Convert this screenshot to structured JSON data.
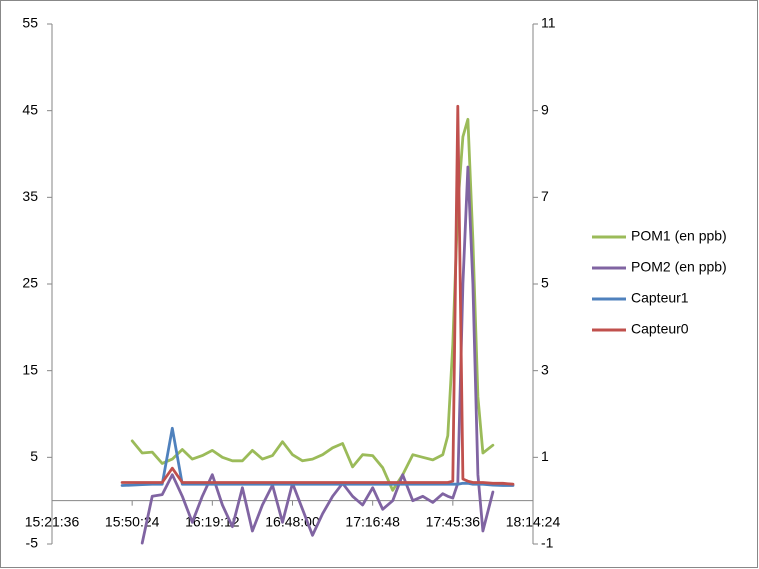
{
  "chart_data": {
    "type": "line",
    "x": [
      "15:46:48",
      "15:50:24",
      "15:54:00",
      "15:57:36",
      "16:01:12",
      "16:04:48",
      "16:08:24",
      "16:12:00",
      "16:15:36",
      "16:19:12",
      "16:22:48",
      "16:26:24",
      "16:30:00",
      "16:33:36",
      "16:37:12",
      "16:40:48",
      "16:44:24",
      "16:48:00",
      "16:51:36",
      "16:55:12",
      "16:58:48",
      "17:02:24",
      "17:06:00",
      "17:09:36",
      "17:13:12",
      "17:16:48",
      "17:20:24",
      "17:24:00",
      "17:27:36",
      "17:31:12",
      "17:34:48",
      "17:38:24",
      "17:42:00",
      "17:43:48",
      "17:45:36",
      "17:47:24",
      "17:49:12",
      "17:51:00",
      "17:52:48",
      "17:54:36",
      "17:56:24",
      "18:00:00",
      "18:03:36",
      "18:07:12"
    ],
    "series": [
      {
        "name": "POM1 (en ppb)",
        "color": "#9bbb59",
        "axis": "y",
        "values": [
          null,
          6.9,
          5.5,
          5.6,
          4.3,
          4.8,
          5.9,
          4.8,
          5.2,
          5.8,
          5.0,
          4.6,
          4.6,
          5.8,
          4.8,
          5.2,
          6.8,
          5.3,
          4.6,
          4.8,
          5.3,
          6.1,
          6.6,
          3.9,
          5.3,
          5.2,
          3.8,
          1.2,
          3.0,
          5.3,
          5.0,
          4.7,
          5.3,
          7.5,
          18,
          34,
          42,
          44,
          30,
          12,
          5.5,
          6.4,
          null,
          null
        ]
      },
      {
        "name": "POM2 (en ppb)",
        "color": "#8064a2",
        "axis": "y",
        "values": [
          null,
          null,
          -4.9,
          0.5,
          0.7,
          3.0,
          0.5,
          -2.5,
          0.5,
          3.0,
          -0.5,
          -3.0,
          1.5,
          -3.5,
          -0.5,
          1.8,
          -2.5,
          2.0,
          -1.0,
          -4.0,
          -1.5,
          0.5,
          2.0,
          0.5,
          -0.5,
          1.5,
          -1.0,
          0.0,
          3.0,
          0.0,
          0.5,
          -0.2,
          0.8,
          0.5,
          0.3,
          2.0,
          25,
          38.5,
          25,
          3.0,
          -3.5,
          1.0,
          null,
          null
        ]
      },
      {
        "name": "Capteur1",
        "color": "#4f81bd",
        "axis": "y2",
        "values": [
          0.35,
          0.36,
          0.37,
          0.38,
          0.38,
          1.67,
          0.38,
          0.38,
          0.38,
          0.38,
          0.38,
          0.38,
          0.38,
          0.38,
          0.38,
          0.38,
          0.38,
          0.38,
          0.38,
          0.38,
          0.38,
          0.38,
          0.38,
          0.38,
          0.38,
          0.38,
          0.38,
          0.38,
          0.38,
          0.38,
          0.38,
          0.38,
          0.38,
          0.38,
          0.38,
          0.38,
          0.4,
          0.4,
          0.38,
          0.38,
          0.38,
          0.36,
          0.35,
          0.35
        ]
      },
      {
        "name": "Capteur0",
        "color": "#c0504d",
        "axis": "y2",
        "values": [
          0.42,
          0.42,
          0.42,
          0.42,
          0.42,
          0.75,
          0.42,
          0.42,
          0.42,
          0.42,
          0.42,
          0.42,
          0.42,
          0.42,
          0.42,
          0.42,
          0.42,
          0.42,
          0.42,
          0.42,
          0.42,
          0.42,
          0.42,
          0.42,
          0.42,
          0.42,
          0.42,
          0.42,
          0.42,
          0.42,
          0.42,
          0.42,
          0.42,
          0.42,
          0.45,
          9.1,
          0.5,
          0.45,
          0.42,
          0.42,
          0.42,
          0.4,
          0.4,
          0.38
        ]
      }
    ],
    "xlim": [
      "15:21:36",
      "18:14:24"
    ],
    "xticks": [
      "15:21:36",
      "15:50:24",
      "16:19:12",
      "16:48:00",
      "17:16:48",
      "17:45:36",
      "18:14:24"
    ],
    "ylim": [
      -5,
      55
    ],
    "yticks": [
      -5,
      5,
      15,
      25,
      35,
      45,
      55
    ],
    "y2lim": [
      -1,
      11
    ],
    "y2ticks": [
      -1,
      1,
      3,
      5,
      7,
      9,
      11
    ],
    "legend": "right"
  }
}
